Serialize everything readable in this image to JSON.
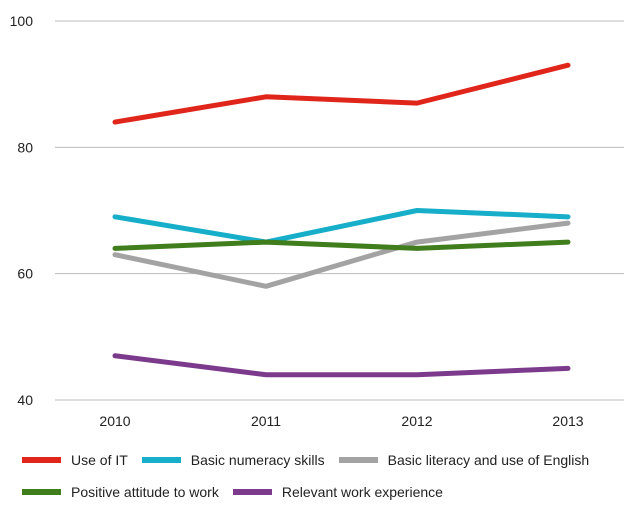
{
  "chart_data": {
    "type": "line",
    "title": "",
    "xlabel": "",
    "ylabel": "",
    "x": [
      "2010",
      "2011",
      "2012",
      "2013"
    ],
    "ylim": [
      40,
      100
    ],
    "yticks": [
      "40",
      "60",
      "80",
      "100"
    ],
    "grid": "horizontal",
    "legend": "bottom",
    "series": [
      {
        "name": "Use of IT",
        "color": "#e0261b",
        "values": [
          84,
          88,
          87,
          93
        ]
      },
      {
        "name": "Basic numeracy skills",
        "color": "#16aec8",
        "values": [
          69,
          65,
          70,
          69
        ]
      },
      {
        "name": "Basic literacy and use of English",
        "color": "#a3a3a3",
        "values": [
          63,
          58,
          65,
          68
        ]
      },
      {
        "name": "Positive attitude to work",
        "color": "#3f7d1d",
        "values": [
          64,
          65,
          64,
          65
        ]
      },
      {
        "name": "Relevant work experience",
        "color": "#7b3a8c",
        "values": [
          47,
          44,
          44,
          45
        ]
      }
    ]
  }
}
